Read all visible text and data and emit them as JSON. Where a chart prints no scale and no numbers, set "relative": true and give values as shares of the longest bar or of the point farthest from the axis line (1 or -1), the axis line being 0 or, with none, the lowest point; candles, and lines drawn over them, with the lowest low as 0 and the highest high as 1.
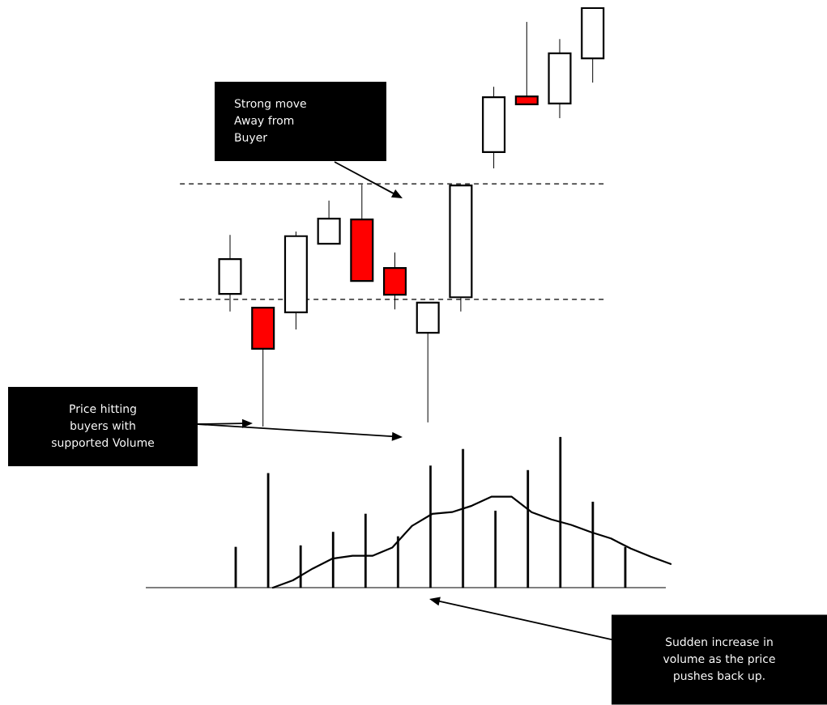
{
  "chart_data": [
    {
      "type": "candlestick",
      "relative": true,
      "categories": [
        null,
        null,
        null,
        null,
        null,
        null,
        null,
        null,
        null,
        null,
        null,
        null
      ],
      "ohlc": [
        [
          0.317,
          0.458,
          0.275,
          0.4
        ],
        [
          0.284,
          0.284,
          0.0,
          0.186
        ],
        [
          0.273,
          0.466,
          0.232,
          0.455
        ],
        [
          0.437,
          0.54,
          0.437,
          0.497
        ],
        [
          0.495,
          0.578,
          0.348,
          0.348
        ],
        [
          0.379,
          0.416,
          0.28,
          0.315
        ],
        [
          0.224,
          0.296,
          0.01,
          0.296
        ],
        [
          0.309,
          0.576,
          0.275,
          0.576
        ],
        [
          0.656,
          0.812,
          0.617,
          0.787
        ],
        [
          0.789,
          0.967,
          0.77,
          0.77
        ],
        [
          0.772,
          0.926,
          0.737,
          0.892
        ],
        [
          0.88,
          1.0,
          0.822,
          1.0
        ]
      ],
      "colors": [
        "#ffffff",
        "#ff0000",
        "#ffffff",
        "#ffffff",
        "#ff0000",
        "#ff0000",
        "#ffffff",
        "#ffffff",
        "#ffffff",
        "#ff0000",
        "#ffffff",
        "#ffffff"
      ],
      "ref_lines": [
        {
          "axis": "y",
          "value": 0.58,
          "line_style": "dashed",
          "color": "#000000"
        },
        {
          "axis": "y",
          "value": 0.304,
          "line_style": "dashed",
          "color": "#000000"
        }
      ],
      "annotations": [
        "Strong move Away from Buyer",
        "Price hitting buyers with supported Volume",
        "Sudden increase in volume as the price pushes back up."
      ]
    },
    {
      "type": "bar",
      "relative": true,
      "categories": [
        null,
        null,
        null,
        null,
        null,
        null,
        null,
        null,
        null,
        null,
        null,
        null,
        null
      ],
      "color": "#000000",
      "values": [
        0.27,
        0.76,
        0.28,
        0.37,
        0.49,
        0.34,
        0.81,
        0.92,
        0.51,
        0.78,
        1.0,
        0.57,
        0.27
      ]
    },
    {
      "type": "line",
      "relative": true,
      "categories": [
        null,
        null,
        null,
        null,
        null,
        null,
        null,
        null,
        null,
        null,
        null,
        null,
        null,
        null,
        null,
        null,
        null,
        null,
        null,
        null,
        null
      ],
      "color": "#000000",
      "values": [
        0.0,
        0.08,
        0.21,
        0.32,
        0.35,
        0.35,
        0.44,
        0.68,
        0.81,
        0.83,
        0.9,
        1.0,
        1.0,
        0.83,
        0.75,
        0.69,
        0.61,
        0.54,
        0.43,
        0.34,
        0.26
      ],
      "marker": "none"
    }
  ]
}
